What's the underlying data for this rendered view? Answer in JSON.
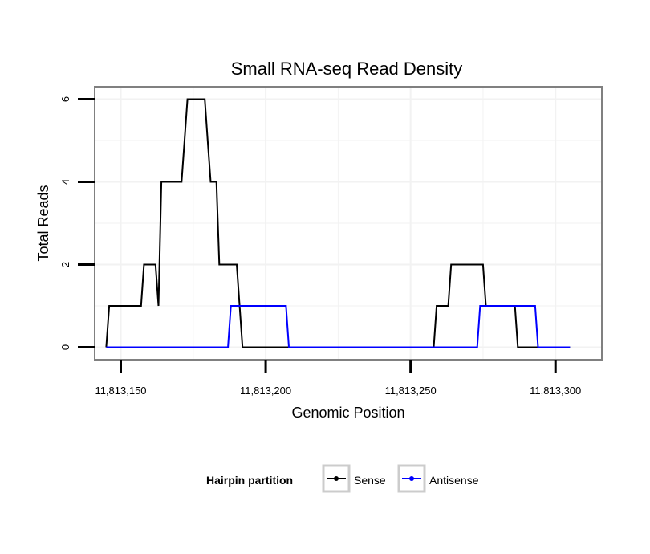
{
  "chart_data": {
    "type": "line",
    "title": "Small RNA-seq Read Density",
    "xlabel": "Genomic Position",
    "ylabel": "Total Reads",
    "xlim": [
      11813141,
      11813316
    ],
    "ylim": [
      -0.3,
      6.3
    ],
    "x_ticks": [
      11813150,
      11813200,
      11813250,
      11813300
    ],
    "x_tick_labels": [
      "11,813,150",
      "11,813,200",
      "11,813,250",
      "11,813,300"
    ],
    "y_ticks": [
      0,
      2,
      4,
      6
    ],
    "y_tick_labels": [
      "0",
      "2",
      "4",
      "6"
    ],
    "grid": true,
    "legend": {
      "title": "Hairpin partition",
      "position": "bottom",
      "entries": [
        "Sense",
        "Antisense"
      ]
    },
    "series": [
      {
        "name": "Sense",
        "color": "#000000",
        "points": [
          [
            11813145,
            0
          ],
          [
            11813146,
            1
          ],
          [
            11813157,
            1
          ],
          [
            11813158,
            2
          ],
          [
            11813162,
            2
          ],
          [
            11813163,
            1
          ],
          [
            11813164,
            4
          ],
          [
            11813171,
            4
          ],
          [
            11813173,
            6
          ],
          [
            11813179,
            6
          ],
          [
            11813180,
            5
          ],
          [
            11813181,
            4
          ],
          [
            11813183,
            4
          ],
          [
            11813184,
            2
          ],
          [
            11813190,
            2
          ],
          [
            11813192,
            0
          ],
          [
            11813258,
            0
          ],
          [
            11813259,
            1
          ],
          [
            11813263,
            1
          ],
          [
            11813264,
            2
          ],
          [
            11813275,
            2
          ],
          [
            11813276,
            1
          ],
          [
            11813286,
            1
          ],
          [
            11813287,
            0
          ],
          [
            11813305,
            0
          ]
        ]
      },
      {
        "name": "Antisense",
        "color": "#0000ff",
        "points": [
          [
            11813145,
            0
          ],
          [
            11813187,
            0
          ],
          [
            11813188,
            1
          ],
          [
            11813207,
            1
          ],
          [
            11813208,
            0
          ],
          [
            11813273,
            0
          ],
          [
            11813274,
            1
          ],
          [
            11813293,
            1
          ],
          [
            11813294,
            0
          ],
          [
            11813305,
            0
          ]
        ]
      }
    ]
  }
}
